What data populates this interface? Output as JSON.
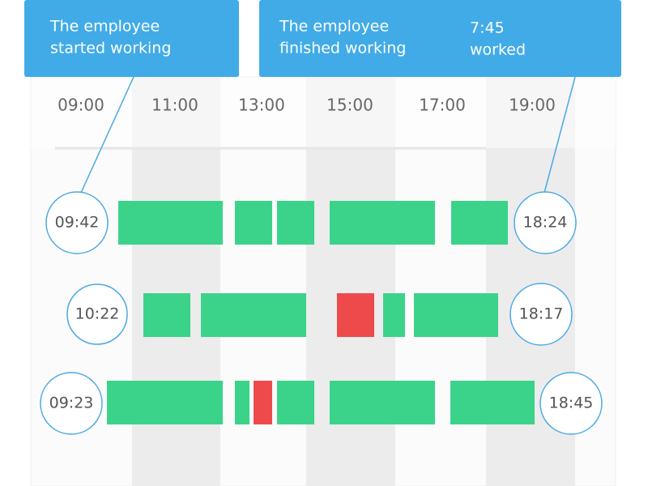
{
  "callouts": [
    {
      "lines": [
        "The employee",
        "started working"
      ]
    },
    {
      "lines": [
        "The employee",
        "finished working"
      ],
      "duration": [
        "7:45",
        "worked"
      ]
    }
  ],
  "time_axis": [
    "09:00",
    "11:00",
    "13:00",
    "15:00",
    "17:00",
    "19:00"
  ],
  "rows": [
    {
      "start": "09:42",
      "end": "18:24"
    },
    {
      "start": "10:22",
      "end": "18:17"
    },
    {
      "start": "09:23",
      "end": "18:45"
    }
  ]
}
